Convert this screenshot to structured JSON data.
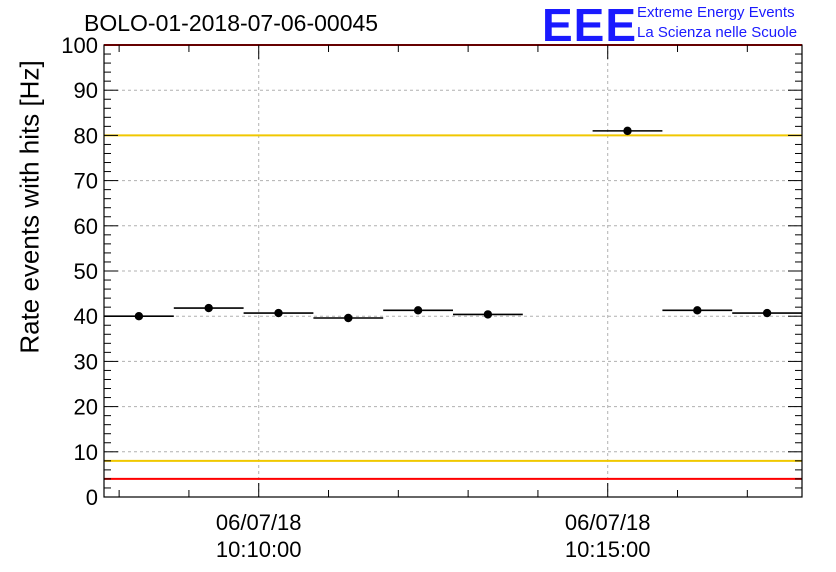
{
  "header": {
    "title": "BOLO-01-2018-07-06-00045",
    "logo_mark": "EEE",
    "logo_line1": "Extreme Energy Events",
    "logo_line2": "La Scienza nelle Scuole"
  },
  "colors": {
    "logo": "#1a1aff",
    "red_threshold": "#ff0000",
    "yellow_threshold": "#f0c800",
    "grid": "#b0b0b0",
    "points": "#000000"
  },
  "chart_data": {
    "type": "scatter",
    "title": "BOLO-01-2018-07-06-00045",
    "ylabel": "Rate events with hits [Hz]",
    "xlabel": "",
    "ylim": [
      0,
      100
    ],
    "yticks": [
      0,
      10,
      20,
      30,
      40,
      50,
      60,
      70,
      80,
      90,
      100
    ],
    "x_axis": {
      "type": "time",
      "range": [
        "10:07:47",
        "10:17:47"
      ],
      "tick_labels": [
        {
          "date": "06/07/18",
          "time": "10:10:00"
        },
        {
          "date": "06/07/18",
          "time": "10:15:00"
        }
      ]
    },
    "grid": true,
    "series": [
      {
        "points": [
          {
            "x": "10:08:17",
            "y": 40.0,
            "xerr_s": 30
          },
          {
            "x": "10:09:17",
            "y": 41.8,
            "xerr_s": 30
          },
          {
            "x": "10:10:17",
            "y": 40.7,
            "xerr_s": 30
          },
          {
            "x": "10:11:17",
            "y": 39.6,
            "xerr_s": 30
          },
          {
            "x": "10:12:17",
            "y": 41.3,
            "xerr_s": 30
          },
          {
            "x": "10:13:17",
            "y": 40.4,
            "xerr_s": 30
          },
          {
            "x": "10:15:17",
            "y": 81.0,
            "xerr_s": 30
          },
          {
            "x": "10:16:17",
            "y": 41.3,
            "xerr_s": 30
          },
          {
            "x": "10:17:17",
            "y": 40.7,
            "xerr_s": 30
          }
        ]
      }
    ],
    "threshold_lines": [
      {
        "y": 100,
        "color": "#ff0000"
      },
      {
        "y": 80,
        "color": "#f0c800"
      },
      {
        "y": 8,
        "color": "#f0c800"
      },
      {
        "y": 4,
        "color": "#ff0000"
      }
    ]
  }
}
